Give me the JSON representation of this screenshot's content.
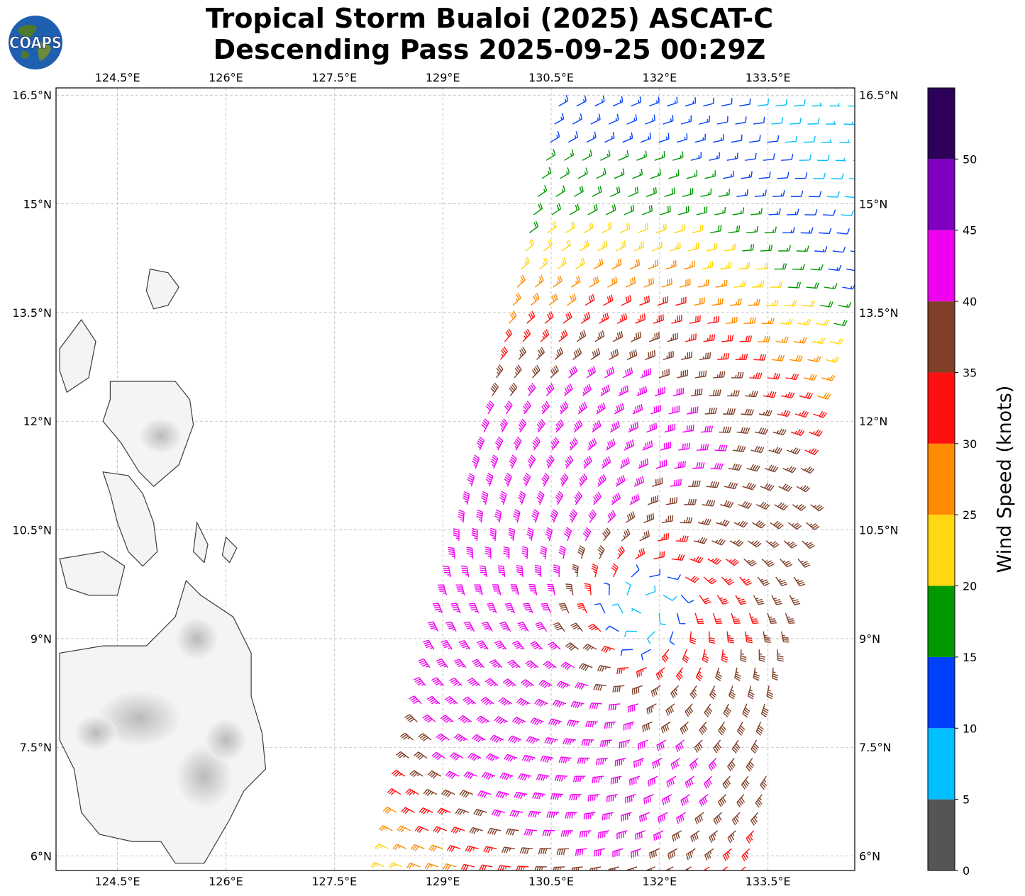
{
  "title": {
    "line1": "Tropical Storm Bualoi (2025) ASCAT-C",
    "line2": "Descending Pass 2025-09-25 00:29Z"
  },
  "logo": {
    "text": "COAPS"
  },
  "map": {
    "lon_range": [
      123.65,
      134.7
    ],
    "lat_range": [
      5.8,
      16.6
    ],
    "lon_ticks": [
      {
        "value": 124.5,
        "label": "124.5°E"
      },
      {
        "value": 126.0,
        "label": "126°E"
      },
      {
        "value": 127.5,
        "label": "127.5°E"
      },
      {
        "value": 129.0,
        "label": "129°E"
      },
      {
        "value": 130.5,
        "label": "130.5°E"
      },
      {
        "value": 132.0,
        "label": "132°E"
      },
      {
        "value": 133.5,
        "label": "133.5°E"
      }
    ],
    "lat_ticks": [
      {
        "value": 16.5,
        "label": "16.5°N"
      },
      {
        "value": 15.0,
        "label": "15°N"
      },
      {
        "value": 13.5,
        "label": "13.5°N"
      },
      {
        "value": 12.0,
        "label": "12°N"
      },
      {
        "value": 10.5,
        "label": "10.5°N"
      },
      {
        "value": 9.0,
        "label": "9°N"
      },
      {
        "value": 7.5,
        "label": "7.5°N"
      },
      {
        "value": 6.0,
        "label": "6°N"
      }
    ],
    "grid": true,
    "storm_center_approx": {
      "lon": 131.8,
      "lat": 9.4
    },
    "swath_direction": "descending"
  },
  "colorbar": {
    "label": "Wind Speed (knots)",
    "bins": [
      {
        "min": 0,
        "max": 5,
        "color": "#555555"
      },
      {
        "min": 5,
        "max": 10,
        "color": "#00bfff"
      },
      {
        "min": 10,
        "max": 15,
        "color": "#0040ff"
      },
      {
        "min": 15,
        "max": 20,
        "color": "#009900"
      },
      {
        "min": 20,
        "max": 25,
        "color": "#ffd712"
      },
      {
        "min": 25,
        "max": 30,
        "color": "#ff8c00"
      },
      {
        "min": 30,
        "max": 35,
        "color": "#ff1010"
      },
      {
        "min": 35,
        "max": 40,
        "color": "#7f3f28"
      },
      {
        "min": 40,
        "max": 45,
        "color": "#f000f0"
      },
      {
        "min": 45,
        "max": 50,
        "color": "#8000c0"
      },
      {
        "min": 50,
        "max": 55,
        "color": "#2d005a"
      }
    ],
    "ticks": [
      "0",
      "5",
      "10",
      "15",
      "20",
      "25",
      "30",
      "35",
      "40",
      "45",
      "50"
    ]
  }
}
